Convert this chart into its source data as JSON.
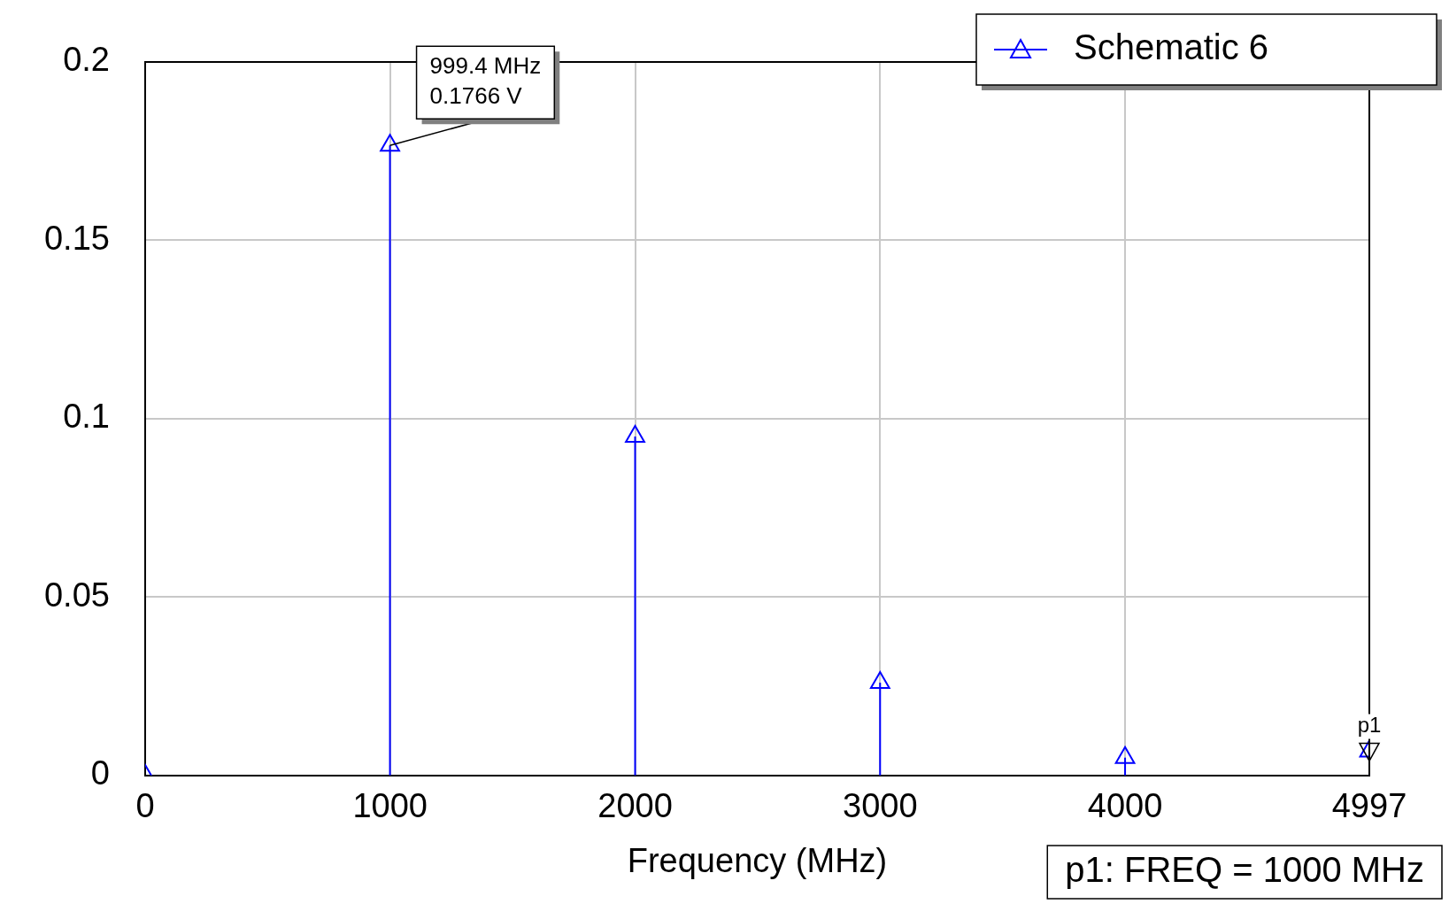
{
  "chart_data": {
    "type": "lollipop",
    "xlabel": "Frequency (MHz)",
    "x": [
      0,
      999.4,
      2000,
      3000,
      4000,
      4997
    ],
    "series": [
      {
        "name": "Schematic 6",
        "color": "#0000ff",
        "values": [
          0,
          0.1766,
          0.095,
          0.026,
          0.005,
          0.0068
        ]
      }
    ],
    "xlim": [
      0,
      4997
    ],
    "xticks": [
      0,
      1000,
      2000,
      3000,
      4000,
      4997
    ],
    "ylim": [
      0,
      0.2
    ],
    "yticks": [
      0,
      0.05,
      0.1,
      0.15,
      0.2
    ],
    "grid": true,
    "legend": "top right",
    "marker": "triangle",
    "line_style": "solid",
    "annotations": [
      {
        "text": "999.4 MHz\n0.1766 V",
        "x": 999.4,
        "y": 0.1766
      },
      {
        "text": "p1",
        "x": 4997,
        "y": 0.0068
      },
      "p1: FREQ = 1000 MHz"
    ]
  }
}
